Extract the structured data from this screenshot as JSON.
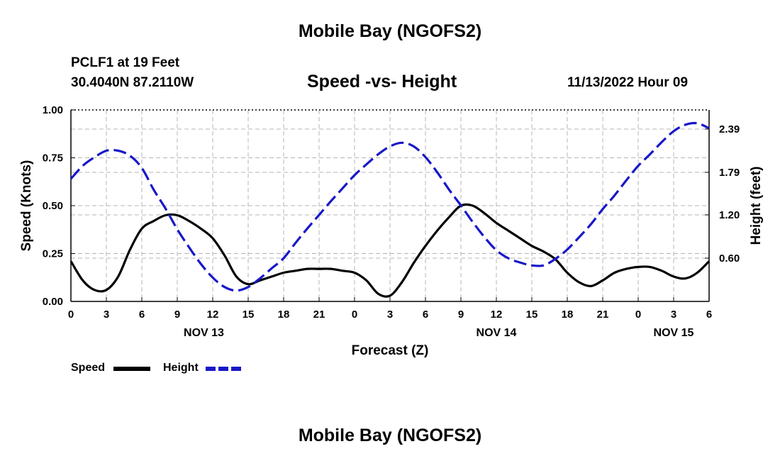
{
  "header": {
    "title": "Mobile Bay (NGOFS2)",
    "station": "PCLF1 at 19 Feet",
    "coords": "30.4040N  87.2110W",
    "subtitle": "Speed -vs- Height",
    "datetime": "11/13/2022 Hour 09"
  },
  "footer": {
    "title": "Mobile Bay (NGOFS2)"
  },
  "legend": {
    "speed_label": "Speed",
    "height_label": "Height",
    "speed_color": "#000000",
    "height_color": "#1818c8"
  },
  "chart_data": {
    "type": "line",
    "xlabel": "Forecast (Z)",
    "ylabel_left": "Speed (Knots)",
    "ylabel_right": "Height (feet)",
    "x_range": [
      0,
      54
    ],
    "x_ticks": [
      0,
      3,
      6,
      9,
      12,
      15,
      18,
      21,
      24,
      27,
      30,
      33,
      36,
      39,
      42,
      45,
      48,
      51,
      54
    ],
    "x_tick_labels": [
      "0",
      "3",
      "6",
      "9",
      "12",
      "15",
      "18",
      "21",
      "0",
      "3",
      "6",
      "9",
      "12",
      "15",
      "18",
      "21",
      "0",
      "3",
      "6"
    ],
    "date_labels": [
      {
        "label": "NOV 13",
        "at": 11.25
      },
      {
        "label": "NOV 14",
        "at": 36
      },
      {
        "label": "NOV 15",
        "at": 51
      }
    ],
    "left_axis": {
      "range": [
        0,
        1
      ],
      "ticks": [
        0,
        0.25,
        0.5,
        0.75,
        1.0
      ],
      "tick_labels": [
        "0.00",
        "0.25",
        "0.50",
        "0.75",
        "1.00"
      ]
    },
    "right_axis": {
      "range": [
        0,
        2.655
      ],
      "ticks": [
        0.6,
        1.2,
        1.79,
        2.39
      ],
      "tick_labels": [
        "0.60",
        "1.20",
        "1.79",
        "2.39"
      ]
    },
    "grid": true,
    "series": [
      {
        "name": "Speed",
        "axis": "left",
        "style": "solid",
        "x": [
          0,
          1,
          2,
          3,
          4,
          5,
          6,
          7,
          8,
          9,
          10,
          11,
          12,
          13,
          14,
          15,
          16,
          17,
          18,
          19,
          20,
          21,
          22,
          23,
          24,
          25,
          26,
          27,
          28,
          29,
          30,
          31,
          32,
          33,
          34,
          35,
          36,
          37,
          38,
          39,
          40,
          41,
          42,
          43,
          44,
          45,
          46,
          47,
          48,
          49,
          50,
          51,
          52,
          53,
          54
        ],
        "values": [
          0.21,
          0.11,
          0.06,
          0.06,
          0.13,
          0.27,
          0.38,
          0.42,
          0.45,
          0.45,
          0.42,
          0.38,
          0.33,
          0.24,
          0.13,
          0.09,
          0.11,
          0.13,
          0.15,
          0.16,
          0.17,
          0.17,
          0.17,
          0.16,
          0.15,
          0.11,
          0.04,
          0.03,
          0.1,
          0.2,
          0.29,
          0.37,
          0.44,
          0.5,
          0.5,
          0.46,
          0.41,
          0.37,
          0.33,
          0.29,
          0.26,
          0.22,
          0.15,
          0.1,
          0.08,
          0.11,
          0.15,
          0.17,
          0.18,
          0.18,
          0.16,
          0.13,
          0.12,
          0.15,
          0.21
        ]
      },
      {
        "name": "Height",
        "axis": "right",
        "style": "dashed",
        "x": [
          0,
          1,
          2,
          3,
          4,
          5,
          6,
          7,
          8,
          9,
          10,
          11,
          12,
          13,
          14,
          15,
          16,
          17,
          18,
          19,
          20,
          21,
          22,
          23,
          24,
          25,
          26,
          27,
          28,
          29,
          30,
          31,
          32,
          33,
          34,
          35,
          36,
          37,
          38,
          39,
          40,
          41,
          42,
          43,
          44,
          45,
          46,
          47,
          48,
          49,
          50,
          51,
          52,
          53,
          54
        ],
        "values": [
          1.7,
          1.88,
          2.0,
          2.09,
          2.09,
          2.02,
          1.85,
          1.55,
          1.29,
          1.0,
          0.75,
          0.52,
          0.33,
          0.2,
          0.15,
          0.2,
          0.32,
          0.46,
          0.6,
          0.81,
          1.01,
          1.2,
          1.39,
          1.57,
          1.75,
          1.9,
          2.04,
          2.15,
          2.2,
          2.15,
          2.0,
          1.79,
          1.55,
          1.33,
          1.1,
          0.89,
          0.71,
          0.6,
          0.54,
          0.5,
          0.5,
          0.59,
          0.72,
          0.89,
          1.07,
          1.28,
          1.47,
          1.68,
          1.88,
          2.04,
          2.21,
          2.36,
          2.45,
          2.47,
          2.4
        ]
      }
    ]
  }
}
